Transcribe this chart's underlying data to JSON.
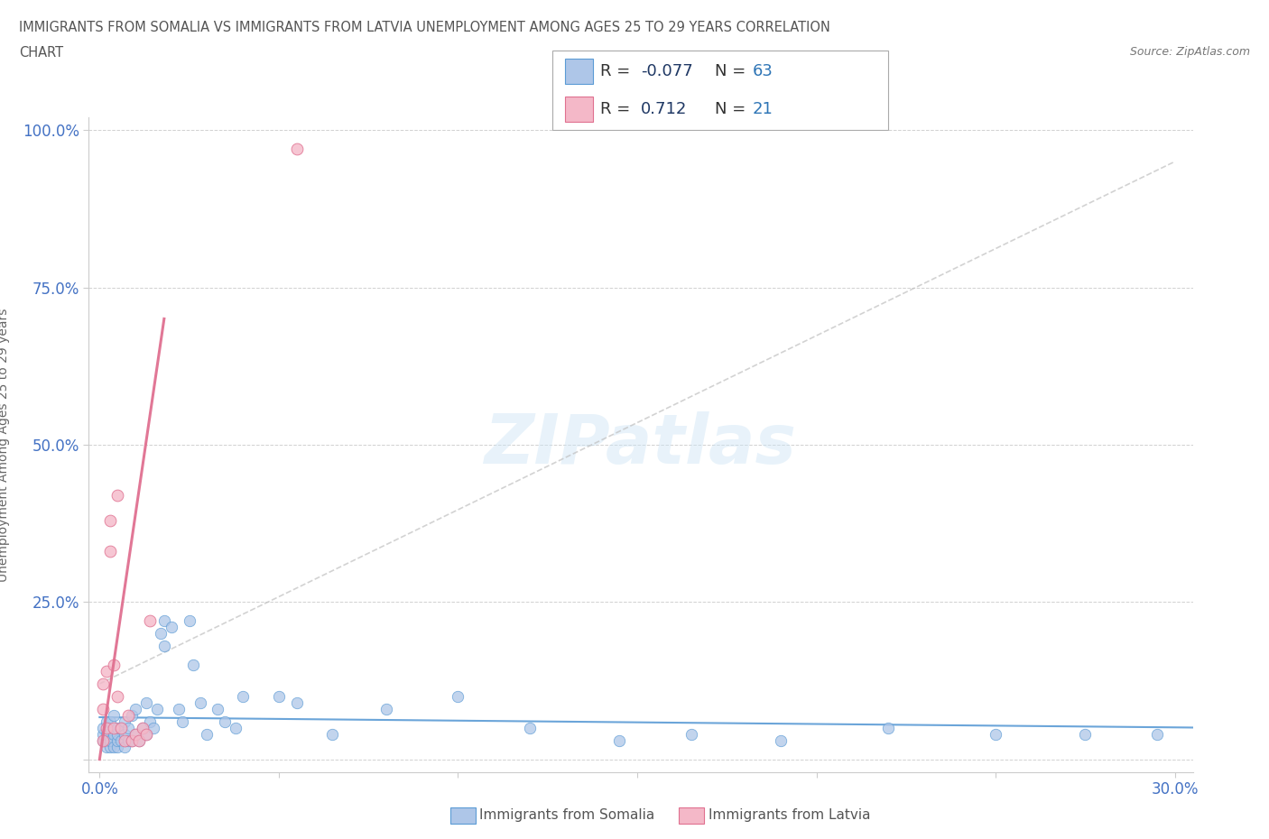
{
  "title_line1": "IMMIGRANTS FROM SOMALIA VS IMMIGRANTS FROM LATVIA UNEMPLOYMENT AMONG AGES 25 TO 29 YEARS CORRELATION",
  "title_line2": "CHART",
  "source": "Source: ZipAtlas.com",
  "ylabel": "Unemployment Among Ages 25 to 29 years",
  "xlim": [
    -0.003,
    0.305
  ],
  "ylim": [
    -0.02,
    1.02
  ],
  "xticks": [
    0.0,
    0.05,
    0.1,
    0.15,
    0.2,
    0.25,
    0.3
  ],
  "xtick_labels": [
    "0.0%",
    "",
    "",
    "",
    "",
    "",
    "30.0%"
  ],
  "yticks": [
    0.0,
    0.25,
    0.5,
    0.75,
    1.0
  ],
  "ytick_labels": [
    "",
    "25.0%",
    "50.0%",
    "75.0%",
    "100.0%"
  ],
  "somalia_color": "#aec6e8",
  "somalia_edge": "#5b9bd5",
  "latvia_color": "#f4b8c8",
  "latvia_edge": "#e07090",
  "trend_somalia_color": "#5b9bd5",
  "trend_somalia_dash_color": "#c0c0c0",
  "trend_latvia_color": "#e07090",
  "R_somalia": -0.077,
  "N_somalia": 63,
  "R_latvia": 0.712,
  "N_latvia": 21,
  "watermark": "ZIPatlas",
  "legend_R_color": "#1f3864",
  "legend_N_color": "#2e75b6",
  "background_color": "#ffffff",
  "somalia_x": [
    0.001,
    0.001,
    0.001,
    0.002,
    0.002,
    0.002,
    0.002,
    0.003,
    0.003,
    0.003,
    0.003,
    0.004,
    0.004,
    0.004,
    0.005,
    0.005,
    0.005,
    0.005,
    0.006,
    0.006,
    0.007,
    0.007,
    0.007,
    0.008,
    0.008,
    0.009,
    0.009,
    0.01,
    0.01,
    0.011,
    0.012,
    0.013,
    0.013,
    0.014,
    0.015,
    0.016,
    0.017,
    0.018,
    0.018,
    0.02,
    0.022,
    0.023,
    0.025,
    0.026,
    0.028,
    0.03,
    0.033,
    0.035,
    0.038,
    0.04,
    0.05,
    0.055,
    0.065,
    0.08,
    0.1,
    0.12,
    0.145,
    0.165,
    0.19,
    0.22,
    0.25,
    0.275,
    0.295
  ],
  "somalia_y": [
    0.03,
    0.04,
    0.05,
    0.02,
    0.03,
    0.04,
    0.06,
    0.02,
    0.03,
    0.05,
    0.06,
    0.02,
    0.04,
    0.07,
    0.02,
    0.03,
    0.04,
    0.05,
    0.03,
    0.05,
    0.02,
    0.04,
    0.06,
    0.03,
    0.05,
    0.03,
    0.07,
    0.04,
    0.08,
    0.03,
    0.05,
    0.04,
    0.09,
    0.06,
    0.05,
    0.08,
    0.2,
    0.22,
    0.18,
    0.21,
    0.08,
    0.06,
    0.22,
    0.15,
    0.09,
    0.04,
    0.08,
    0.06,
    0.05,
    0.1,
    0.1,
    0.09,
    0.04,
    0.08,
    0.1,
    0.05,
    0.03,
    0.04,
    0.03,
    0.05,
    0.04,
    0.04,
    0.04
  ],
  "latvia_x": [
    0.001,
    0.001,
    0.001,
    0.002,
    0.002,
    0.003,
    0.003,
    0.004,
    0.004,
    0.005,
    0.005,
    0.006,
    0.007,
    0.008,
    0.009,
    0.01,
    0.011,
    0.012,
    0.013,
    0.014,
    0.055
  ],
  "latvia_y": [
    0.03,
    0.08,
    0.12,
    0.05,
    0.14,
    0.33,
    0.38,
    0.05,
    0.15,
    0.42,
    0.1,
    0.05,
    0.03,
    0.07,
    0.03,
    0.04,
    0.03,
    0.05,
    0.04,
    0.22,
    0.97
  ],
  "trend_lat_x0": 0.0,
  "trend_lat_x1": 0.018,
  "trend_lat_y0": 0.0,
  "trend_lat_y1": 0.7,
  "trend_som_dash_x0": 0.0,
  "trend_som_dash_x1": 0.3,
  "trend_som_dash_y0": 0.12,
  "trend_som_dash_y1": 0.95
}
